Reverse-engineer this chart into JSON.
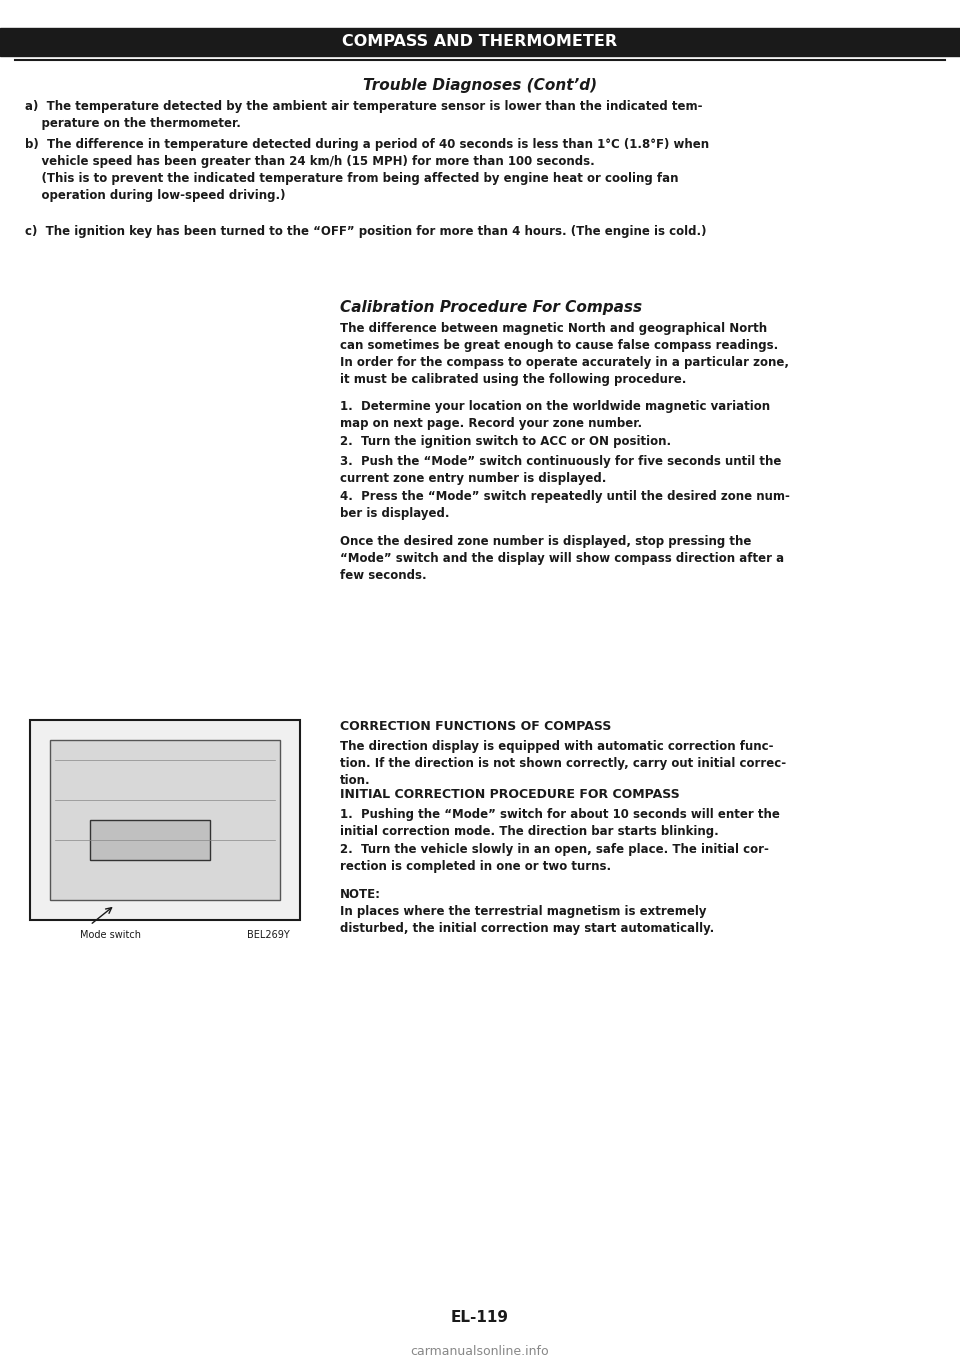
{
  "bg_color": "#ffffff",
  "text_color": "#1a1a1a",
  "header_text": "COMPASS AND THERMOMETER",
  "subheader_text": "Trouble Diagnoses (Cont’d)",
  "section_a": "a)  The temperature detected by the ambient air temperature sensor is lower than the indicated tem-\n    perature on the thermometer.",
  "section_b": "b)  The difference in temperature detected during a period of 40 seconds is less than 1°C (1.8°F) when\n    vehicle speed has been greater than 24 km/h (15 MPH) for more than 100 seconds.\n    (This is to prevent the indicated temperature from being affected by engine heat or cooling fan\n    operation during low-speed driving.)",
  "section_c": "c)  The ignition key has been turned to the “OFF” position for more than 4 hours. (The engine is cold.)",
  "calibration_title": "Calibration Procedure For Compass",
  "calibration_intro": "The difference between magnetic North and geographical North\ncan sometimes be great enough to cause false compass readings.\nIn order for the compass to operate accurately in a particular zone,\nit must be calibrated using the following procedure.",
  "calibration_steps": [
    "Determine your location on the worldwide magnetic variation\nmap on next page. Record your zone number.",
    "Turn the ignition switch to ACC or ON position.",
    "Push the “Mode” switch continuously for five seconds until the\ncurrent zone entry number is displayed.",
    "Press the “Mode” switch repeatedly until the desired zone num-\nber is displayed."
  ],
  "calibration_outro": "Once the desired zone number is displayed, stop pressing the\n“Mode” switch and the display will show compass direction after a\nfew seconds.",
  "correction_title": "CORRECTION FUNCTIONS OF COMPASS",
  "correction_text": "The direction display is equipped with automatic correction func-\ntion. If the direction is not shown correctly, carry out initial correc-\ntion.",
  "initial_title": "INITIAL CORRECTION PROCEDURE FOR COMPASS",
  "initial_steps": [
    "Pushing the “Mode” switch for about 10 seconds will enter the\ninitial correction mode. The direction bar starts blinking.",
    "Turn the vehicle slowly in an open, safe place. The initial cor-\nrection is completed in one or two turns."
  ],
  "note_text": "NOTE:\nIn places where the terrestrial magnetism is extremely\ndisturbed, the initial correction may start automatically.",
  "page_number": "EL-119",
  "watermark": "carmanualsonline.info"
}
